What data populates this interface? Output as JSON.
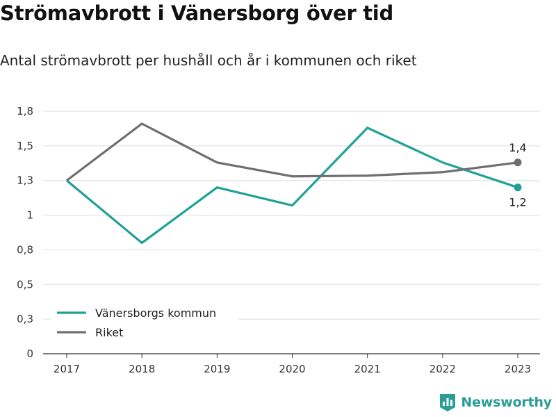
{
  "header": {
    "title": "Strömavbrott i Vänersborg över tid",
    "subtitle": "Antal strömavbrott per hushåll och år i kommunen och riket"
  },
  "brand": {
    "name": "Newsworthy",
    "icon": "bar-chart-logo-icon",
    "color": "#2c9d96"
  },
  "chart_data": {
    "type": "line",
    "x": [
      "2017",
      "2018",
      "2019",
      "2020",
      "2021",
      "2022",
      "2023"
    ],
    "yticks": [
      0,
      0.25,
      0.5,
      0.75,
      1,
      1.25,
      1.5,
      1.75
    ],
    "ytick_labels": [
      "0",
      "0,3",
      "0,5",
      "0,8",
      "1",
      "1,3",
      "1,5",
      "1,8"
    ],
    "ylim": [
      0,
      1.75
    ],
    "grid": true,
    "legend_position": "bottom-left",
    "series": [
      {
        "name": "Vänersborgs kommun",
        "color": "#1fa195",
        "values": [
          1.25,
          0.8,
          1.2,
          1.07,
          1.63,
          1.38,
          1.2
        ],
        "end_label": "1,2"
      },
      {
        "name": "Riket",
        "color": "#6e6e73",
        "values": [
          1.25,
          1.66,
          1.38,
          1.28,
          1.285,
          1.31,
          1.38
        ],
        "end_label": "1,4"
      }
    ]
  }
}
